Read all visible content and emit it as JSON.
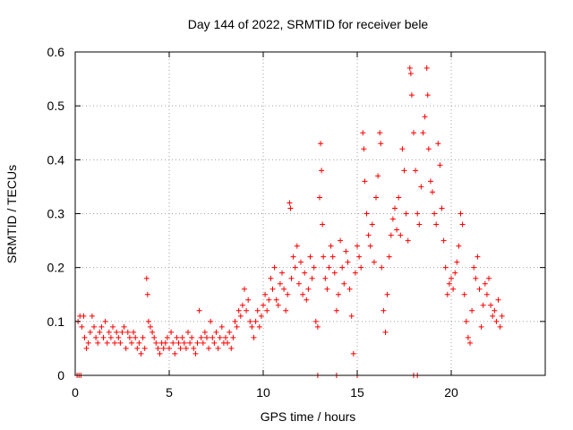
{
  "chart_data": {
    "type": "scatter",
    "title": "Day 144 of 2022, SRMTID for receiver bele",
    "xlabel": "GPS time / hours",
    "ylabel": "SRMTID / TECUs",
    "xlim": [
      0,
      25
    ],
    "ylim": [
      0,
      0.6
    ],
    "x_ticks": [
      0,
      5,
      10,
      15,
      20
    ],
    "x_tick_labels": [
      "0",
      "5",
      "10",
      "15",
      "20"
    ],
    "y_ticks": [
      0,
      0.1,
      0.2,
      0.3,
      0.4,
      0.5,
      0.6
    ],
    "y_tick_labels": [
      "0",
      "0.1",
      "0.2",
      "0.3",
      "0.4",
      "0.5",
      "0.6"
    ],
    "grid": true,
    "marker": "+",
    "series": [
      {
        "name": "SRMTID",
        "color": "#ff0000",
        "points": [
          [
            0.1,
            0.0
          ],
          [
            0.2,
            0.0
          ],
          [
            0.3,
            0.0
          ],
          [
            0.15,
            0.1
          ],
          [
            0.25,
            0.11
          ],
          [
            0.35,
            0.09
          ],
          [
            0.45,
            0.11
          ],
          [
            0.5,
            0.07
          ],
          [
            0.6,
            0.05
          ],
          [
            0.7,
            0.06
          ],
          [
            0.8,
            0.08
          ],
          [
            0.9,
            0.11
          ],
          [
            1.0,
            0.09
          ],
          [
            1.1,
            0.07
          ],
          [
            1.2,
            0.06
          ],
          [
            1.3,
            0.08
          ],
          [
            1.4,
            0.09
          ],
          [
            1.5,
            0.07
          ],
          [
            1.6,
            0.1
          ],
          [
            1.7,
            0.06
          ],
          [
            1.8,
            0.08
          ],
          [
            1.9,
            0.07
          ],
          [
            2.0,
            0.09
          ],
          [
            2.1,
            0.06
          ],
          [
            2.2,
            0.08
          ],
          [
            2.3,
            0.07
          ],
          [
            2.4,
            0.06
          ],
          [
            2.5,
            0.08
          ],
          [
            2.6,
            0.09
          ],
          [
            2.7,
            0.05
          ],
          [
            2.8,
            0.08
          ],
          [
            2.9,
            0.07
          ],
          [
            3.0,
            0.06
          ],
          [
            3.1,
            0.08
          ],
          [
            3.2,
            0.07
          ],
          [
            3.3,
            0.05
          ],
          [
            3.4,
            0.06
          ],
          [
            3.5,
            0.04
          ],
          [
            3.6,
            0.07
          ],
          [
            3.7,
            0.05
          ],
          [
            3.8,
            0.18
          ],
          [
            3.85,
            0.15
          ],
          [
            3.9,
            0.1
          ],
          [
            4.0,
            0.09
          ],
          [
            4.1,
            0.08
          ],
          [
            4.2,
            0.07
          ],
          [
            4.3,
            0.06
          ],
          [
            4.4,
            0.05
          ],
          [
            4.5,
            0.04
          ],
          [
            4.6,
            0.06
          ],
          [
            4.7,
            0.05
          ],
          [
            4.8,
            0.06
          ],
          [
            4.9,
            0.07
          ],
          [
            5.0,
            0.05
          ],
          [
            5.1,
            0.08
          ],
          [
            5.2,
            0.06
          ],
          [
            5.3,
            0.04
          ],
          [
            5.4,
            0.07
          ],
          [
            5.5,
            0.06
          ],
          [
            5.6,
            0.05
          ],
          [
            5.7,
            0.07
          ],
          [
            5.8,
            0.06
          ],
          [
            5.9,
            0.05
          ],
          [
            6.0,
            0.08
          ],
          [
            6.1,
            0.06
          ],
          [
            6.2,
            0.07
          ],
          [
            6.3,
            0.05
          ],
          [
            6.4,
            0.04
          ],
          [
            6.5,
            0.06
          ],
          [
            6.6,
            0.12
          ],
          [
            6.7,
            0.07
          ],
          [
            6.8,
            0.06
          ],
          [
            6.9,
            0.08
          ],
          [
            7.0,
            0.07
          ],
          [
            7.1,
            0.05
          ],
          [
            7.2,
            0.1
          ],
          [
            7.3,
            0.07
          ],
          [
            7.4,
            0.06
          ],
          [
            7.5,
            0.08
          ],
          [
            7.6,
            0.05
          ],
          [
            7.7,
            0.07
          ],
          [
            7.8,
            0.09
          ],
          [
            7.9,
            0.06
          ],
          [
            8.0,
            0.07
          ],
          [
            8.1,
            0.06
          ],
          [
            8.2,
            0.08
          ],
          [
            8.3,
            0.05
          ],
          [
            8.4,
            0.07
          ],
          [
            8.5,
            0.1
          ],
          [
            8.6,
            0.09
          ],
          [
            8.7,
            0.12
          ],
          [
            8.8,
            0.11
          ],
          [
            8.9,
            0.13
          ],
          [
            9.0,
            0.16
          ],
          [
            9.1,
            0.12
          ],
          [
            9.2,
            0.14
          ],
          [
            9.3,
            0.1
          ],
          [
            9.4,
            0.09
          ],
          [
            9.5,
            0.07
          ],
          [
            9.6,
            0.1
          ],
          [
            9.7,
            0.12
          ],
          [
            9.8,
            0.09
          ],
          [
            9.9,
            0.11
          ],
          [
            10.0,
            0.13
          ],
          [
            10.1,
            0.15
          ],
          [
            10.2,
            0.12
          ],
          [
            10.3,
            0.14
          ],
          [
            10.4,
            0.18
          ],
          [
            10.5,
            0.16
          ],
          [
            10.6,
            0.2
          ],
          [
            10.7,
            0.14
          ],
          [
            10.8,
            0.13
          ],
          [
            10.9,
            0.17
          ],
          [
            11.0,
            0.19
          ],
          [
            11.1,
            0.16
          ],
          [
            11.2,
            0.12
          ],
          [
            11.3,
            0.15
          ],
          [
            11.4,
            0.32
          ],
          [
            11.45,
            0.31
          ],
          [
            11.5,
            0.18
          ],
          [
            11.6,
            0.22
          ],
          [
            11.7,
            0.2
          ],
          [
            11.8,
            0.24
          ],
          [
            11.9,
            0.17
          ],
          [
            12.0,
            0.21
          ],
          [
            12.1,
            0.15
          ],
          [
            12.2,
            0.19
          ],
          [
            12.3,
            0.14
          ],
          [
            12.4,
            0.16
          ],
          [
            12.5,
            0.22
          ],
          [
            12.6,
            0.18
          ],
          [
            12.7,
            0.2
          ],
          [
            12.8,
            0.1
          ],
          [
            12.9,
            0.09
          ],
          [
            13.0,
            0.33
          ],
          [
            13.05,
            0.43
          ],
          [
            13.1,
            0.38
          ],
          [
            13.15,
            0.28
          ],
          [
            13.2,
            0.22
          ],
          [
            13.3,
            0.18
          ],
          [
            13.4,
            0.16
          ],
          [
            13.5,
            0.2
          ],
          [
            13.6,
            0.24
          ],
          [
            13.7,
            0.22
          ],
          [
            13.8,
            0.19
          ],
          [
            13.9,
            0.12
          ],
          [
            14.0,
            0.15
          ],
          [
            14.1,
            0.25
          ],
          [
            14.2,
            0.2
          ],
          [
            14.3,
            0.17
          ],
          [
            14.4,
            0.23
          ],
          [
            14.5,
            0.21
          ],
          [
            14.6,
            0.16
          ],
          [
            14.7,
            0.11
          ],
          [
            14.8,
            0.04
          ],
          [
            14.9,
            0.19
          ],
          [
            15.0,
            0.24
          ],
          [
            15.1,
            0.22
          ],
          [
            15.2,
            0.2
          ],
          [
            15.3,
            0.45
          ],
          [
            15.35,
            0.42
          ],
          [
            15.4,
            0.36
          ],
          [
            15.5,
            0.3
          ],
          [
            15.6,
            0.26
          ],
          [
            15.7,
            0.24
          ],
          [
            15.8,
            0.28
          ],
          [
            15.9,
            0.21
          ],
          [
            16.0,
            0.33
          ],
          [
            16.1,
            0.37
          ],
          [
            16.2,
            0.45
          ],
          [
            16.25,
            0.43
          ],
          [
            16.3,
            0.2
          ],
          [
            16.4,
            0.12
          ],
          [
            16.5,
            0.08
          ],
          [
            16.6,
            0.15
          ],
          [
            16.7,
            0.22
          ],
          [
            16.8,
            0.26
          ],
          [
            16.9,
            0.29
          ],
          [
            17.0,
            0.31
          ],
          [
            17.1,
            0.27
          ],
          [
            17.2,
            0.33
          ],
          [
            17.3,
            0.26
          ],
          [
            17.4,
            0.42
          ],
          [
            17.5,
            0.38
          ],
          [
            17.6,
            0.3
          ],
          [
            17.7,
            0.25
          ],
          [
            17.8,
            0.57
          ],
          [
            17.85,
            0.56
          ],
          [
            17.9,
            0.52
          ],
          [
            18.0,
            0.45
          ],
          [
            18.1,
            0.38
          ],
          [
            18.2,
            0.3
          ],
          [
            18.3,
            0.28
          ],
          [
            18.4,
            0.35
          ],
          [
            18.5,
            0.45
          ],
          [
            18.6,
            0.48
          ],
          [
            18.7,
            0.57
          ],
          [
            18.75,
            0.52
          ],
          [
            18.8,
            0.42
          ],
          [
            18.9,
            0.36
          ],
          [
            19.0,
            0.34
          ],
          [
            19.1,
            0.3
          ],
          [
            19.2,
            0.28
          ],
          [
            19.3,
            0.43
          ],
          [
            19.4,
            0.39
          ],
          [
            19.5,
            0.31
          ],
          [
            19.6,
            0.25
          ],
          [
            19.7,
            0.2
          ],
          [
            19.8,
            0.15
          ],
          [
            19.9,
            0.17
          ],
          [
            20.0,
            0.18
          ],
          [
            20.1,
            0.16
          ],
          [
            20.2,
            0.19
          ],
          [
            20.3,
            0.21
          ],
          [
            20.4,
            0.24
          ],
          [
            20.5,
            0.3
          ],
          [
            20.6,
            0.28
          ],
          [
            20.7,
            0.15
          ],
          [
            20.8,
            0.1
          ],
          [
            20.9,
            0.07
          ],
          [
            21.0,
            0.06
          ],
          [
            21.1,
            0.12
          ],
          [
            21.2,
            0.2
          ],
          [
            21.3,
            0.18
          ],
          [
            21.4,
            0.22
          ],
          [
            21.5,
            0.16
          ],
          [
            21.6,
            0.09
          ],
          [
            21.7,
            0.13
          ],
          [
            21.8,
            0.17
          ],
          [
            21.9,
            0.15
          ],
          [
            22.0,
            0.18
          ],
          [
            22.1,
            0.13
          ],
          [
            22.2,
            0.11
          ],
          [
            22.3,
            0.12
          ],
          [
            22.4,
            0.1
          ],
          [
            22.5,
            0.14
          ],
          [
            22.6,
            0.09
          ],
          [
            22.7,
            0.11
          ],
          [
            12.9,
            0.0
          ],
          [
            13.9,
            0.0
          ],
          [
            15.0,
            0.0
          ],
          [
            18.0,
            0.0
          ],
          [
            18.2,
            0.0
          ]
        ]
      }
    ]
  }
}
